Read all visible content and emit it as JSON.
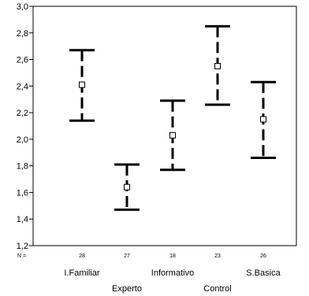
{
  "chart_data": {
    "type": "errorbar",
    "title": "",
    "xlabel": "",
    "ylabel": "",
    "ylim": [
      1.2,
      3.0
    ],
    "y_ticks": [
      "1,2",
      "1,4",
      "1,6",
      "1,8",
      "2,0",
      "2,2",
      "2,4",
      "2,6",
      "2,8",
      "3,0"
    ],
    "y_tick_values": [
      1.2,
      1.4,
      1.6,
      1.8,
      2.0,
      2.2,
      2.4,
      2.6,
      2.8,
      3.0
    ],
    "n_label": "N =",
    "grid": false,
    "categories": [
      "I.Familiar",
      "Experto",
      "Informativo",
      "Control",
      "S.Basica"
    ],
    "n_values": [
      "28",
      "27",
      "18",
      "23",
      "26"
    ],
    "means": [
      2.41,
      1.64,
      2.03,
      2.55,
      2.15
    ],
    "lower": [
      2.14,
      1.47,
      1.77,
      2.26,
      1.86
    ],
    "upper": [
      2.67,
      1.81,
      2.29,
      2.85,
      2.43
    ]
  }
}
